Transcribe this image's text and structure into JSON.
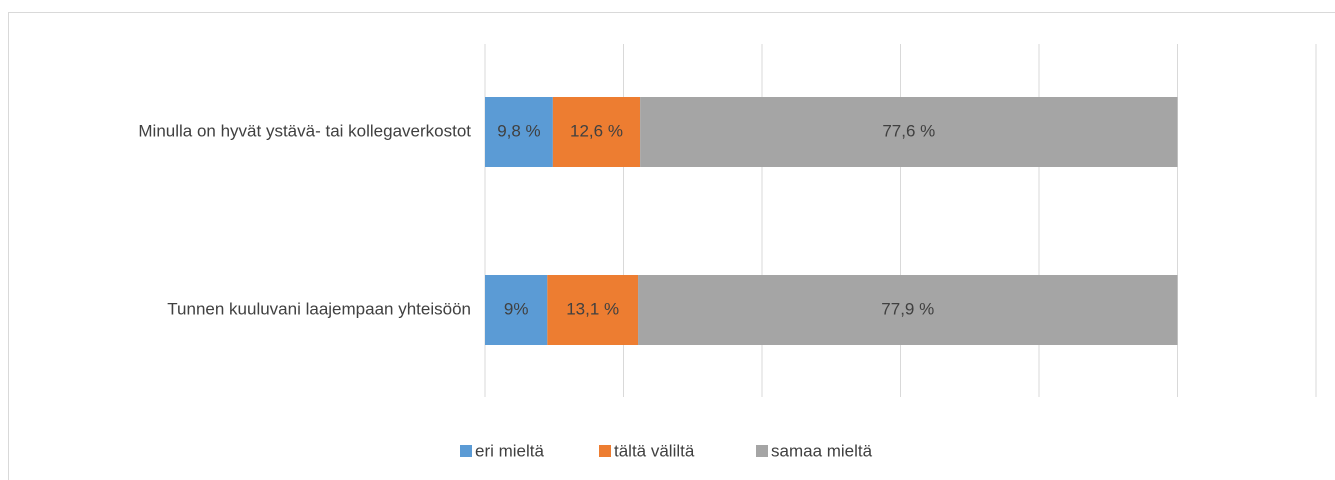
{
  "chart_data": {
    "type": "stacked-bar-horizontal",
    "categories": [
      "Minulla on hyvät ystävä- tai kollegaverkostot",
      "Tunnen kuuluvani laajempaan yhteisöön"
    ],
    "series": [
      {
        "name": "eri mieltä",
        "color": "#5b9bd5",
        "values": [
          9.8,
          9
        ],
        "value_labels": [
          "9,8 %",
          "9%"
        ]
      },
      {
        "name": "tältä väliltä",
        "color": "#ed7d31",
        "values": [
          12.6,
          13.1
        ],
        "value_labels": [
          "12,6 %",
          "13,1 %"
        ]
      },
      {
        "name": "samaa mieltä",
        "color": "#a5a5a5",
        "values": [
          77.6,
          77.9
        ],
        "value_labels": [
          "77,6 %",
          "77,9 %"
        ]
      }
    ],
    "xlim": [
      0,
      120
    ],
    "xticks": [
      0,
      20,
      40,
      60,
      80,
      100,
      120
    ],
    "grid": true,
    "legend": "bottom"
  }
}
